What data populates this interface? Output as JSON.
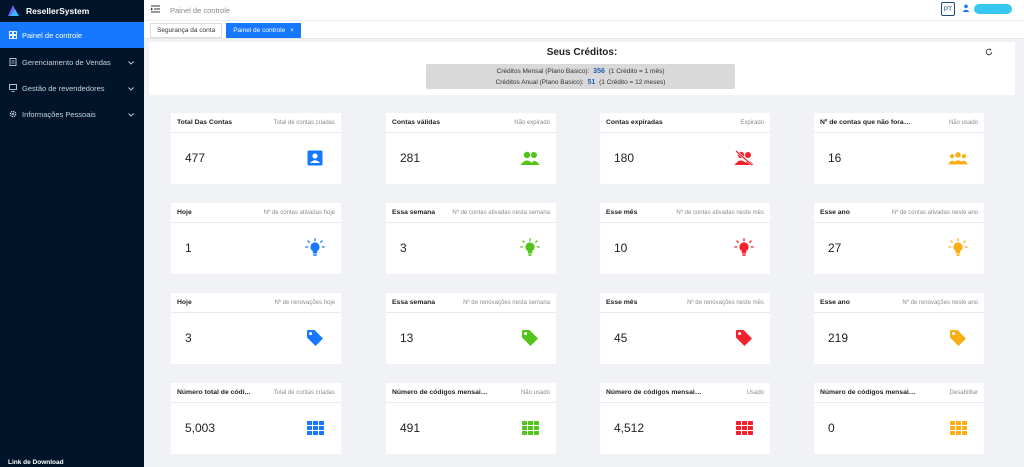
{
  "app": {
    "title": "ResellerSystem"
  },
  "sidebar": {
    "items": [
      {
        "label": "Painel de controle"
      },
      {
        "label": "Gerenciamento de Vendas"
      },
      {
        "label": "Gestão de revendedores"
      },
      {
        "label": "Informações Pessoais"
      }
    ],
    "footer": "Link de Download"
  },
  "header": {
    "breadcrumb": "Painel de controle",
    "lang": "PT"
  },
  "tabs": [
    {
      "label": "Segurança da conta"
    },
    {
      "label": "Painel de controle"
    }
  ],
  "credits": {
    "title": "Seus Créditos:",
    "monthly": {
      "label": "Créditos Mensal (Plano Basico):",
      "value": "356",
      "note": "(1 Crédito = 1 mês)"
    },
    "annual": {
      "label": "Créditos Anual (Plano Basico):",
      "value": "51",
      "note": "(1 Crédito = 12 meses)"
    }
  },
  "colors": {
    "accent": "#1677ff",
    "sidebar": "#001529",
    "blue": "#1677ff",
    "green": "#52c41a",
    "red": "#f5222d",
    "orange": "#faad14"
  },
  "cards": [
    {
      "title": "Total Das Contas",
      "sub": "Total de contas criadas",
      "value": "477",
      "icon": "account-box-icon",
      "color": "#1677ff"
    },
    {
      "title": "Contas válidas",
      "sub": "Não expirado",
      "value": "281",
      "icon": "users-icon",
      "color": "#52c41a"
    },
    {
      "title": "Contas expiradas",
      "sub": "Expirado",
      "value": "180",
      "icon": "users-off-icon",
      "color": "#f5222d"
    },
    {
      "title": "Nº de contas que não foram ve...",
      "sub": "Não usado",
      "value": "16",
      "icon": "group-icon",
      "color": "#faad14"
    },
    {
      "title": "Hoje",
      "sub": "Nº de contas ativadas hoje",
      "value": "1",
      "icon": "lightbulb-icon",
      "color": "#1677ff"
    },
    {
      "title": "Essa semana",
      "sub": "Nº de contas ativadas nesta semana",
      "value": "3",
      "icon": "lightbulb-icon",
      "color": "#52c41a"
    },
    {
      "title": "Esse mês",
      "sub": "Nº de contas ativadas neste mês",
      "value": "10",
      "icon": "lightbulb-icon",
      "color": "#f5222d"
    },
    {
      "title": "Esse ano",
      "sub": "Nº de contas ativadas neste ano",
      "value": "27",
      "icon": "lightbulb-icon",
      "color": "#faad14"
    },
    {
      "title": "Hoje",
      "sub": "Nº de renovações hoje",
      "value": "3",
      "icon": "tag-icon",
      "color": "#1677ff"
    },
    {
      "title": "Essa semana",
      "sub": "Nº de renovações nesta semana",
      "value": "13",
      "icon": "tag-icon",
      "color": "#52c41a"
    },
    {
      "title": "Esse mês",
      "sub": "Nº de renovações neste mês",
      "value": "45",
      "icon": "tag-icon",
      "color": "#f5222d"
    },
    {
      "title": "Esse ano",
      "sub": "Nº de renovações neste ano",
      "value": "219",
      "icon": "tag-icon",
      "color": "#faad14"
    },
    {
      "title": "Número total de códi...",
      "sub": "Total de contas criadas",
      "value": "5,003",
      "icon": "grid-icon",
      "color": "#1677ff"
    },
    {
      "title": "Número de códigos mensais de...",
      "sub": "Não usado",
      "value": "491",
      "icon": "grid-icon",
      "color": "#52c41a"
    },
    {
      "title": "Número de códigos mensais de ativ...",
      "sub": "Usado",
      "value": "4,512",
      "icon": "grid-icon",
      "color": "#f5222d"
    },
    {
      "title": "Número de códigos mensais de ...",
      "sub": "Desabilitar",
      "value": "0",
      "icon": "grid-icon",
      "color": "#faad14"
    }
  ]
}
